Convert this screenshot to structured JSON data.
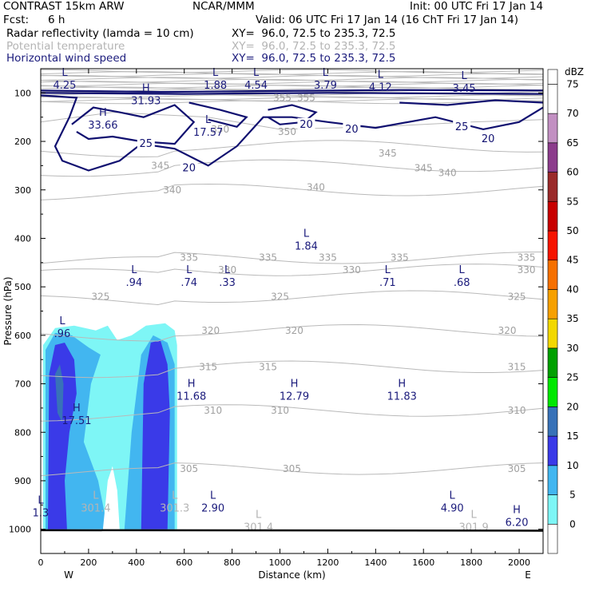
{
  "header": {
    "model": "CONTRAST 15km ARW",
    "org": "NCAR/MMM",
    "init": "Init: 00 UTC Fri 17 Jan 14",
    "fcst_label": "Fcst:",
    "fcst_value": "6 h",
    "valid": "Valid: 06 UTC Fri 17 Jan 14 (16 ChT Fri 17 Jan 14)",
    "fields": [
      {
        "name": "Radar reflectivity (lamda = 10 cm)",
        "xy": "XY=  96.0, 72.5 to 235.3, 72.5"
      },
      {
        "name": "Potential temperature",
        "xy": "XY=  96.0, 72.5 to 235.3, 72.5"
      },
      {
        "name": "Horizontal wind speed",
        "xy": "XY=  96.0, 72.5 to 235.3, 72.5"
      }
    ]
  },
  "chart_data": {
    "type": "cross-section",
    "xlabel": "Distance (km)",
    "ylabel": "Pressure (hPa)",
    "x_ticks": [
      0,
      200,
      400,
      600,
      800,
      1000,
      1200,
      1400,
      1600,
      1800,
      2000
    ],
    "y_ticks": [
      100,
      200,
      300,
      400,
      500,
      600,
      700,
      800,
      900,
      1000
    ],
    "xlim": [
      0,
      2100
    ],
    "ylim": [
      1050,
      50
    ],
    "end_labels": {
      "west": "W",
      "east": "E"
    },
    "colorbar": {
      "unit": "dBZ",
      "levels": [
        0,
        5,
        10,
        15,
        20,
        25,
        30,
        35,
        40,
        45,
        50,
        55,
        60,
        65,
        70,
        75
      ],
      "colors": [
        "#ffffff",
        "#7ef6f6",
        "#42b6f0",
        "#3a3ae8",
        "#3872b8",
        "#00e800",
        "#00a000",
        "#f2d800",
        "#f6a000",
        "#f67000",
        "#f61400",
        "#c80000",
        "#9a2a2a",
        "#8c3c8c",
        "#c290c2",
        "#ffffff"
      ]
    },
    "theta_labels": [
      {
        "v": "355",
        "x": 1010,
        "p": 110
      },
      {
        "v": "355",
        "x": 1110,
        "p": 110
      },
      {
        "v": "350",
        "x": 1030,
        "p": 180
      },
      {
        "v": "350",
        "x": 750,
        "p": 175
      },
      {
        "v": "345",
        "x": 1450,
        "p": 225
      },
      {
        "v": "345",
        "x": 1600,
        "p": 255
      },
      {
        "v": "345",
        "x": 500,
        "p": 250
      },
      {
        "v": "340",
        "x": 1700,
        "p": 265
      },
      {
        "v": "340",
        "x": 1150,
        "p": 295
      },
      {
        "v": "340",
        "x": 550,
        "p": 300
      },
      {
        "v": "335",
        "x": 950,
        "p": 440
      },
      {
        "v": "335",
        "x": 1200,
        "p": 440
      },
      {
        "v": "335",
        "x": 1500,
        "p": 440
      },
      {
        "v": "335",
        "x": 2030,
        "p": 440
      },
      {
        "v": "335",
        "x": 620,
        "p": 440
      },
      {
        "v": "330",
        "x": 780,
        "p": 465
      },
      {
        "v": "330",
        "x": 1300,
        "p": 465
      },
      {
        "v": "330",
        "x": 2030,
        "p": 465
      },
      {
        "v": "325",
        "x": 250,
        "p": 520
      },
      {
        "v": "325",
        "x": 1000,
        "p": 520
      },
      {
        "v": "325",
        "x": 1990,
        "p": 520
      },
      {
        "v": "320",
        "x": 1060,
        "p": 590
      },
      {
        "v": "320",
        "x": 1950,
        "p": 590
      },
      {
        "v": "320",
        "x": 710,
        "p": 590
      },
      {
        "v": "315",
        "x": 950,
        "p": 665
      },
      {
        "v": "315",
        "x": 1990,
        "p": 665
      },
      {
        "v": "315",
        "x": 700,
        "p": 665
      },
      {
        "v": "310",
        "x": 1000,
        "p": 755
      },
      {
        "v": "310",
        "x": 1990,
        "p": 755
      },
      {
        "v": "310",
        "x": 720,
        "p": 755
      },
      {
        "v": "305",
        "x": 1050,
        "p": 875
      },
      {
        "v": "305",
        "x": 1990,
        "p": 875
      },
      {
        "v": "305",
        "x": 620,
        "p": 875
      }
    ],
    "wind_labels": [
      {
        "v": "20",
        "x": 1110,
        "p": 165
      },
      {
        "v": "20",
        "x": 1300,
        "p": 175
      },
      {
        "v": "20",
        "x": 1870,
        "p": 195
      },
      {
        "v": "20",
        "x": 620,
        "p": 255
      },
      {
        "v": "25",
        "x": 440,
        "p": 205
      },
      {
        "v": "25",
        "x": 1760,
        "p": 170
      }
    ],
    "extrema": [
      {
        "t": "L",
        "v": "4.25",
        "x": 100,
        "p": 78
      },
      {
        "t": "L",
        "v": "1.88",
        "x": 730,
        "p": 78
      },
      {
        "t": "L",
        "v": "4.54",
        "x": 900,
        "p": 78
      },
      {
        "t": "L",
        "v": "3.79",
        "x": 1190,
        "p": 78
      },
      {
        "t": "L",
        "v": "4.12",
        "x": 1420,
        "p": 82
      },
      {
        "t": "L",
        "v": "3.45",
        "x": 1770,
        "p": 85
      },
      {
        "t": "H",
        "v": "31.93",
        "x": 440,
        "p": 110
      },
      {
        "t": "H",
        "v": "33.66",
        "x": 260,
        "p": 160
      },
      {
        "t": "L",
        "v": "17.57",
        "x": 700,
        "p": 175
      },
      {
        "t": "L",
        "v": "1.84",
        "x": 1110,
        "p": 410
      },
      {
        "t": "L",
        "v": ".94",
        "x": 390,
        "p": 485
      },
      {
        "t": "L",
        "v": ".74",
        "x": 620,
        "p": 485
      },
      {
        "t": "L",
        "v": ".33",
        "x": 780,
        "p": 485
      },
      {
        "t": "L",
        "v": ".71",
        "x": 1450,
        "p": 485
      },
      {
        "t": "L",
        "v": ".68",
        "x": 1760,
        "p": 485
      },
      {
        "t": "L",
        "v": ".96",
        "x": 90,
        "p": 590
      },
      {
        "t": "H",
        "v": "11.68",
        "x": 630,
        "p": 720
      },
      {
        "t": "H",
        "v": "12.79",
        "x": 1060,
        "p": 720
      },
      {
        "t": "H",
        "v": "11.83",
        "x": 1510,
        "p": 720
      },
      {
        "t": "H",
        "v": "17.51",
        "x": 150,
        "p": 770
      },
      {
        "t": "L",
        "v": "301.4",
        "x": 230,
        "p": 950
      },
      {
        "t": "L",
        "v": "301.3",
        "x": 560,
        "p": 950
      },
      {
        "t": "L",
        "v": "2.90",
        "x": 720,
        "p": 950
      },
      {
        "t": "L",
        "v": "4.90",
        "x": 1720,
        "p": 950
      },
      {
        "t": "H",
        "v": "6.20",
        "x": 1990,
        "p": 980
      },
      {
        "t": "L",
        "v": "301.4",
        "x": 910,
        "p": 990
      },
      {
        "t": "L",
        "v": "301.9",
        "x": 1810,
        "p": 990
      },
      {
        "t": "L",
        "v": "1.3",
        "x": 0,
        "p": 960
      }
    ]
  }
}
